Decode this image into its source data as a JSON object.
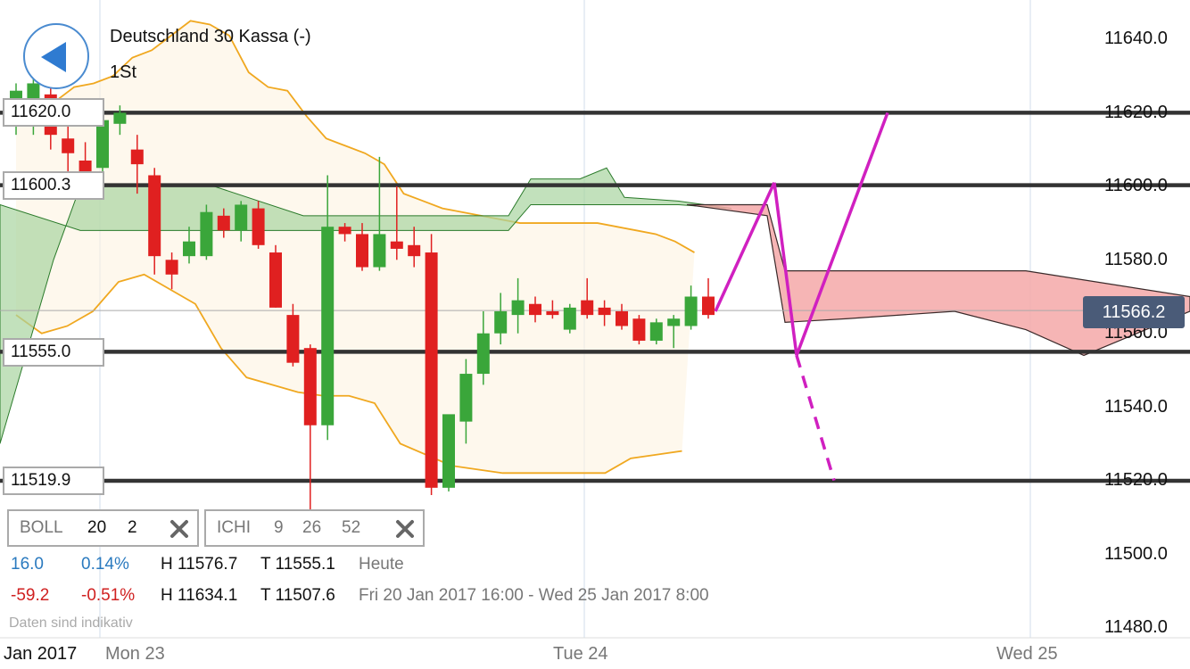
{
  "header": {
    "instrument": "Deutschland 30 Kassa (-)",
    "interval": "1St"
  },
  "back_button": {
    "icon": "back-arrow-icon"
  },
  "price_badge": "11566.2",
  "level_labels": [
    "11620.0",
    "11600.3",
    "11555.0",
    "11519.9"
  ],
  "y_ticks": [
    "11640.0",
    "11620.0",
    "11600.0",
    "11580.0",
    "11560.0",
    "11540.0",
    "11520.0",
    "11500.0",
    "11480.0"
  ],
  "x_ticks": [
    "Jan 2017",
    "Mon 23",
    "Tue 24",
    "Wed 25"
  ],
  "indicators": {
    "boll": {
      "name": "BOLL",
      "p1": "20",
      "p2": "2",
      "close_icon": "close-x-icon"
    },
    "ichi": {
      "name": "ICHI",
      "p1": "9",
      "p2": "26",
      "p3": "52",
      "close_icon": "close-x-icon"
    }
  },
  "stats": {
    "today": {
      "change": "16.0",
      "pct": "0.14%",
      "high": "H 11576.7",
      "low": "T 11555.1",
      "period": "Heute"
    },
    "range": {
      "change": "-59.2",
      "pct": "-0.51%",
      "high": "H 11634.1",
      "low": "T 11507.6",
      "period": "Fri 20 Jan 2017 16:00 - Wed 25 Jan 2017 8:00"
    }
  },
  "disclaimer": "Daten sind indikativ",
  "colors": {
    "up": "#3aa63a",
    "down": "#e02020",
    "bollinger": "#f0a820",
    "projection": "#d020c0",
    "cloud_bull": "#a8d4a0",
    "cloud_bear": "#f4a8a8",
    "badge": "#4a5b78"
  },
  "chart_data": {
    "type": "candlestick",
    "y_range": [
      11480,
      11645
    ],
    "horizontal_levels": [
      11620.0,
      11600.3,
      11555.0,
      11519.9
    ],
    "current_price": 11566.2,
    "candles": [
      {
        "o": 11622,
        "h": 11628,
        "l": 11614,
        "c": 11626
      },
      {
        "o": 11618,
        "h": 11631,
        "l": 11614,
        "c": 11628
      },
      {
        "o": 11625,
        "h": 11630,
        "l": 11610,
        "c": 11614
      },
      {
        "o": 11613,
        "h": 11618,
        "l": 11603,
        "c": 11609
      },
      {
        "o": 11607,
        "h": 11612,
        "l": 11601,
        "c": 11604
      },
      {
        "o": 11605,
        "h": 11622,
        "l": 11601,
        "c": 11618
      },
      {
        "o": 11617,
        "h": 11622,
        "l": 11614,
        "c": 11620
      },
      {
        "o": 11610,
        "h": 11614,
        "l": 11598,
        "c": 11606
      },
      {
        "o": 11603,
        "h": 11605,
        "l": 11576,
        "c": 11581
      },
      {
        "o": 11580,
        "h": 11582,
        "l": 11572,
        "c": 11576
      },
      {
        "o": 11581,
        "h": 11589,
        "l": 11579,
        "c": 11585
      },
      {
        "o": 11581,
        "h": 11595,
        "l": 11580,
        "c": 11593
      },
      {
        "o": 11592,
        "h": 11594,
        "l": 11586,
        "c": 11588
      },
      {
        "o": 11588,
        "h": 11596,
        "l": 11585,
        "c": 11595
      },
      {
        "o": 11594,
        "h": 11596,
        "l": 11583,
        "c": 11584
      },
      {
        "o": 11582,
        "h": 11584,
        "l": 11567,
        "c": 11567
      },
      {
        "o": 11565,
        "h": 11568,
        "l": 11551,
        "c": 11552
      },
      {
        "o": 11556,
        "h": 11557,
        "l": 11512,
        "c": 11535
      },
      {
        "o": 11535,
        "h": 11603,
        "l": 11531,
        "c": 11589
      },
      {
        "o": 11589,
        "h": 11590,
        "l": 11585,
        "c": 11587
      },
      {
        "o": 11587,
        "h": 11590,
        "l": 11577,
        "c": 11578
      },
      {
        "o": 11578,
        "h": 11608,
        "l": 11577,
        "c": 11587
      },
      {
        "o": 11585,
        "h": 11600,
        "l": 11580,
        "c": 11583
      },
      {
        "o": 11584,
        "h": 11589,
        "l": 11578,
        "c": 11581
      },
      {
        "o": 11582,
        "h": 11587,
        "l": 11516,
        "c": 11518
      },
      {
        "o": 11518,
        "h": 11537,
        "l": 11517,
        "c": 11538
      },
      {
        "o": 11536,
        "h": 11553,
        "l": 11530,
        "c": 11549
      },
      {
        "o": 11549,
        "h": 11566,
        "l": 11546,
        "c": 11560
      },
      {
        "o": 11560,
        "h": 11571,
        "l": 11557,
        "c": 11566
      },
      {
        "o": 11565,
        "h": 11575,
        "l": 11560,
        "c": 11569
      },
      {
        "o": 11568,
        "h": 11570,
        "l": 11563,
        "c": 11565
      },
      {
        "o": 11566,
        "h": 11569,
        "l": 11564,
        "c": 11565
      },
      {
        "o": 11561,
        "h": 11568,
        "l": 11560,
        "c": 11567
      },
      {
        "o": 11569,
        "h": 11575,
        "l": 11564,
        "c": 11565
      },
      {
        "o": 11567,
        "h": 11569,
        "l": 11562,
        "c": 11565
      },
      {
        "o": 11566,
        "h": 11568,
        "l": 11561,
        "c": 11562
      },
      {
        "o": 11564,
        "h": 11565,
        "l": 11557,
        "c": 11558
      },
      {
        "o": 11558,
        "h": 11564,
        "l": 11557,
        "c": 11563
      },
      {
        "o": 11562,
        "h": 11565,
        "l": 11556,
        "c": 11564
      },
      {
        "o": 11562,
        "h": 11573,
        "l": 11561,
        "c": 11570
      },
      {
        "o": 11570,
        "h": 11575,
        "l": 11564,
        "c": 11565
      }
    ],
    "bollinger_upper": [
      11620,
      11621,
      11623,
      11627,
      11628,
      11630,
      11635,
      11637,
      11641,
      11645,
      11644,
      11641,
      11631,
      11627,
      11626,
      11619,
      11613,
      11611,
      11609,
      11606,
      11598,
      11596,
      11594,
      11593,
      11592,
      11591,
      11590,
      11590,
      11590,
      11590,
      11590,
      11589,
      11588,
      11587,
      11585,
      11582
    ],
    "bollinger_lower": [
      11565,
      11560,
      11562,
      11566,
      11574,
      11576,
      11572,
      11568,
      11556,
      11548,
      11546,
      11544,
      11543,
      11543,
      11541,
      11530,
      11527,
      11524,
      11523,
      11522,
      11522,
      11522,
      11522,
      11522,
      11526,
      11527,
      11528
    ],
    "projection": [
      [
        11566,
        11601
      ],
      [
        11601,
        11554
      ],
      [
        11554,
        11620
      ]
    ],
    "projection_dashed": [
      [
        11554,
        11520
      ]
    ]
  }
}
